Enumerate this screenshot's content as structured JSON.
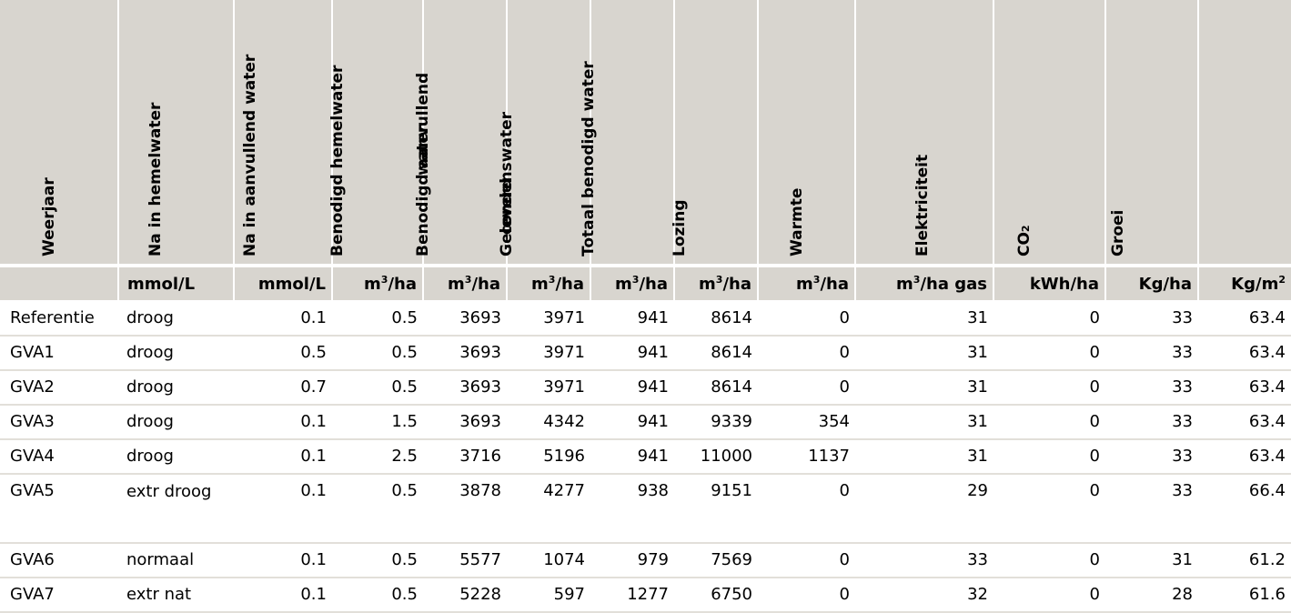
{
  "headers": [
    {
      "lines": [
        ""
      ]
    },
    {
      "lines": [
        "Weerjaar"
      ]
    },
    {
      "lines": [
        "Na in hemelwater"
      ]
    },
    {
      "lines": [
        "Na in aanvullend water"
      ]
    },
    {
      "lines": [
        "Benodigd hemelwater"
      ]
    },
    {
      "lines": [
        "Benodigd aanvullend",
        "water"
      ]
    },
    {
      "lines": [
        "Geleverd",
        "condenswater"
      ]
    },
    {
      "lines": [
        "Totaal benodigd water"
      ]
    },
    {
      "lines": [
        "Lozing"
      ]
    },
    {
      "lines": [
        "Warmte"
      ]
    },
    {
      "lines": [
        "Elektriciteit"
      ]
    },
    {
      "lines": [
        "CO",
        "2"
      ]
    },
    {
      "lines": [
        "Groei"
      ]
    }
  ],
  "units": [
    {
      "base": "",
      "sup": "",
      "suffix": ""
    },
    {
      "base": "mmol/L",
      "sup": "",
      "suffix": ""
    },
    {
      "base": "mmol/L",
      "sup": "",
      "suffix": ""
    },
    {
      "base": "m",
      "sup": "3",
      "suffix": "/ha"
    },
    {
      "base": "m",
      "sup": "3",
      "suffix": "/ha"
    },
    {
      "base": "m",
      "sup": "3",
      "suffix": "/ha"
    },
    {
      "base": "m",
      "sup": "3",
      "suffix": "/ha"
    },
    {
      "base": "m",
      "sup": "3",
      "suffix": "/ha"
    },
    {
      "base": "m",
      "sup": "3",
      "suffix": "/ha"
    },
    {
      "base": "m",
      "sup": "3",
      "suffix": "/ha gas"
    },
    {
      "base": "kWh/ha",
      "sup": "",
      "suffix": ""
    },
    {
      "base": "Kg/ha",
      "sup": "",
      "suffix": ""
    },
    {
      "base": "Kg/m",
      "sup": "2",
      "suffix": ""
    }
  ],
  "rows": [
    [
      "Referentie",
      "droog",
      "0.1",
      "0.5",
      "3693",
      "3971",
      "941",
      "8614",
      "0",
      "31",
      "0",
      "33",
      "63.4"
    ],
    [
      "GVA1",
      "droog",
      "0.5",
      "0.5",
      "3693",
      "3971",
      "941",
      "8614",
      "0",
      "31",
      "0",
      "33",
      "63.4"
    ],
    [
      "GVA2",
      "droog",
      "0.7",
      "0.5",
      "3693",
      "3971",
      "941",
      "8614",
      "0",
      "31",
      "0",
      "33",
      "63.4"
    ],
    [
      "GVA3",
      "droog",
      "0.1",
      "1.5",
      "3693",
      "4342",
      "941",
      "9339",
      "354",
      "31",
      "0",
      "33",
      "63.4"
    ],
    [
      "GVA4",
      "droog",
      "0.1",
      "2.5",
      "3716",
      "5196",
      "941",
      "11000",
      "1137",
      "31",
      "0",
      "33",
      "63.4"
    ],
    [
      "GVA5",
      "extr droog",
      "0.1",
      "0.5",
      "3878",
      "4277",
      "938",
      "9151",
      "0",
      "29",
      "0",
      "33",
      "66.4"
    ],
    [
      "GVA6",
      "normaal",
      "0.1",
      "0.5",
      "5577",
      "1074",
      "979",
      "7569",
      "0",
      "33",
      "0",
      "31",
      "61.2"
    ],
    [
      "GVA7",
      "extr nat",
      "0.1",
      "0.5",
      "5228",
      "597",
      "1277",
      "6750",
      "0",
      "32",
      "0",
      "28",
      "61.6"
    ]
  ],
  "colors": {
    "header_bg": "#d8d5cf",
    "row_rule": "#e2dfd9"
  }
}
